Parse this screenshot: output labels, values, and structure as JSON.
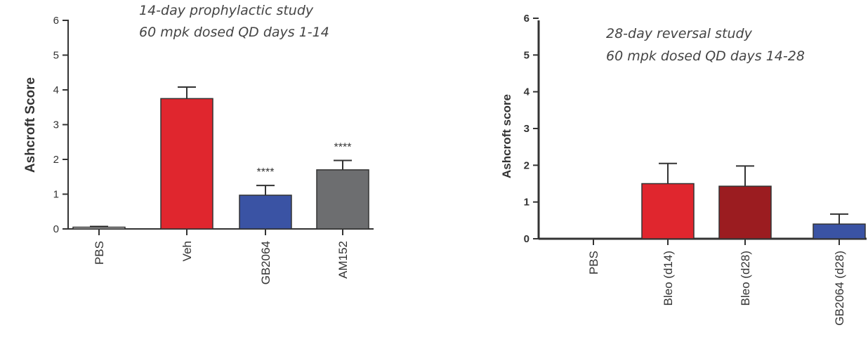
{
  "chart_data": [
    {
      "type": "bar",
      "annotation": [
        "14-day prophylactic study",
        "60 mpk dosed QD days 1-14"
      ],
      "ylabel": "Ashcroft Score",
      "ylim": [
        0,
        6
      ],
      "yticks": [
        "0",
        "1",
        "2",
        "3",
        "4",
        "5",
        "6"
      ],
      "grid": false,
      "categories": [
        "PBS",
        "Veh",
        "GB2064",
        "AM152"
      ],
      "values": [
        0.05,
        3.75,
        0.97,
        1.7
      ],
      "errors": [
        0.02,
        0.33,
        0.28,
        0.27
      ],
      "significance": [
        "",
        "",
        "****",
        "****"
      ],
      "colors": [
        "#dcdcdc",
        "#e0262e",
        "#3a53a4",
        "#6d6e70"
      ]
    },
    {
      "type": "bar",
      "annotation": [
        "28-day reversal study",
        "60 mpk dosed QD days 14-28"
      ],
      "ylabel": "Ashcroft score",
      "ylim": [
        0,
        6
      ],
      "yticks": [
        "0",
        "1",
        "2",
        "3",
        "4",
        "5",
        "6"
      ],
      "grid": false,
      "categories": [
        "PBS",
        "Bleo (d14)",
        "Bleo (d28)",
        "GB2064 (d28)"
      ],
      "values": [
        0,
        1.5,
        1.43,
        0.4
      ],
      "errors": [
        0,
        0.55,
        0.55,
        0.27
      ],
      "significance": [
        "",
        "",
        "",
        ""
      ],
      "colors": [
        "#ffffff",
        "#e0262e",
        "#9b1c20",
        "#3a53a4"
      ]
    }
  ]
}
